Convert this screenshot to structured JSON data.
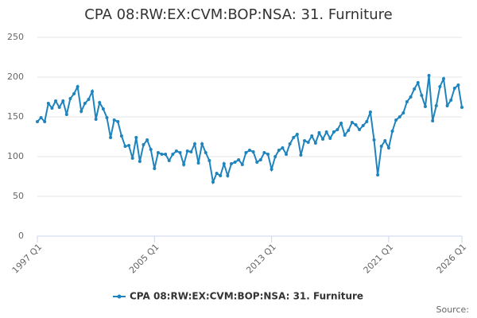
{
  "chart_data": {
    "type": "line",
    "title": "CPA 08:RW:EX:CVM:BOP:NSA: 31. Furniture",
    "source_label": "Source:",
    "categories": [
      "1997 Q1",
      null,
      null,
      null,
      null,
      null,
      null,
      null,
      null,
      null,
      null,
      null,
      null,
      null,
      null,
      null,
      null,
      null,
      null,
      null,
      null,
      null,
      null,
      null,
      null,
      null,
      null,
      null,
      null,
      null,
      null,
      null,
      "2005 Q1",
      null,
      null,
      null,
      null,
      null,
      null,
      null,
      null,
      null,
      null,
      null,
      null,
      null,
      null,
      null,
      null,
      null,
      null,
      null,
      null,
      null,
      null,
      null,
      null,
      null,
      null,
      null,
      null,
      null,
      null,
      null,
      "2013 Q1",
      null,
      null,
      null,
      null,
      null,
      null,
      null,
      null,
      null,
      null,
      null,
      null,
      null,
      null,
      null,
      null,
      null,
      null,
      null,
      null,
      null,
      null,
      null,
      null,
      null,
      null,
      null,
      null,
      null,
      null,
      null,
      "2021 Q1",
      null,
      null,
      null,
      null,
      null,
      null,
      null,
      null,
      null,
      null,
      null,
      null,
      null,
      null,
      null,
      null,
      null,
      null,
      null,
      "2026 Q1"
    ],
    "series": [
      {
        "name": "CPA 08:RW:EX:CVM:BOP:NSA: 31. Furniture",
        "color": "#1f84bd",
        "values": [
          144,
          149,
          144,
          167,
          161,
          170,
          162,
          170,
          153,
          173,
          179,
          188,
          157,
          167,
          172,
          182,
          147,
          168,
          160,
          149,
          124,
          146,
          144,
          126,
          113,
          114,
          98,
          124,
          94,
          115,
          121,
          109,
          85,
          105,
          103,
          103,
          95,
          103,
          107,
          105,
          90,
          107,
          106,
          116,
          92,
          116,
          105,
          95,
          68,
          79,
          76,
          91,
          76,
          91,
          93,
          96,
          90,
          105,
          108,
          106,
          93,
          96,
          105,
          103,
          84,
          100,
          108,
          111,
          103,
          116,
          124,
          128,
          102,
          120,
          118,
          126,
          117,
          130,
          122,
          131,
          123,
          131,
          134,
          142,
          127,
          133,
          143,
          140,
          134,
          139,
          144,
          156,
          121,
          77,
          113,
          120,
          111,
          132,
          146,
          150,
          155,
          169,
          175,
          185,
          193,
          177,
          163,
          202,
          145,
          164,
          188,
          198,
          164,
          171,
          186,
          190,
          162
        ]
      }
    ],
    "ylim": [
      0,
      250
    ],
    "yticks": [
      0,
      50,
      100,
      150,
      200,
      250
    ],
    "grid": true
  }
}
